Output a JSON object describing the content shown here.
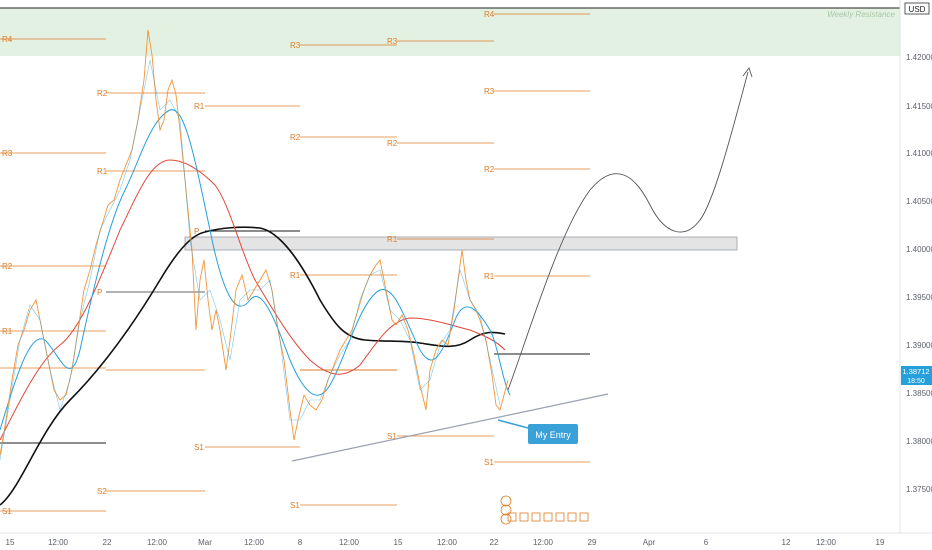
{
  "symbol_tag": "USD",
  "zone_label": "Weekly Resistance",
  "entry_label": "My Entry",
  "price_tag": {
    "value": "1.38712",
    "countdown": "18:50"
  },
  "colors": {
    "background": "#ffffff",
    "pivot": "#e07b24",
    "price_line": "#f0953a",
    "ma_fast": "#26a0da",
    "ma_mid": "#e0473a",
    "ma_slow": "#111111",
    "resistance_zone": "#e3f1e3",
    "demand_zone": "#e4e4e4",
    "trendline": "#9aa0b0",
    "entry_box": "#3aa0d8",
    "price_tag_bg": "#26a0da"
  },
  "chart_data": {
    "type": "line",
    "y_ticks": [
      "1.42000",
      "1.41500",
      "1.41000",
      "1.40500",
      "1.40000",
      "1.39500",
      "1.39000",
      "1.38500",
      "1.38000",
      "1.37500"
    ],
    "ylim": [
      1.3715,
      1.4255
    ],
    "x_ticks": [
      "15",
      "12:00",
      "22",
      "12:00",
      "Mar",
      "12:00",
      "8",
      "12:00",
      "15",
      "12:00",
      "22",
      "12:00",
      "29",
      "Apr",
      "6",
      "12",
      "12:00",
      "19"
    ],
    "resistance_zone": [
      1.42,
      1.4255
    ],
    "demand_zone": [
      1.3996,
      1.4012
    ],
    "pivot_levels": [
      {
        "label": "R4",
        "y": 1.4225
      },
      {
        "label": "R3",
        "y": 1.4221
      },
      {
        "label": "R3",
        "y": 1.4222
      },
      {
        "label": "R4",
        "y": 1.4249
      },
      {
        "label": "R2",
        "y": 1.4162
      },
      {
        "label": "R1",
        "y": 1.415
      },
      {
        "label": "R3",
        "y": 1.4164
      },
      {
        "label": "R3",
        "y": 1.4102
      },
      {
        "label": "R2",
        "y": 1.4108
      },
      {
        "label": "R2",
        "y": 1.4114
      },
      {
        "label": "R1",
        "y": 1.4082
      },
      {
        "label": "R2",
        "y": 1.4082
      },
      {
        "label": "P",
        "y": 1.4017
      },
      {
        "label": "R1",
        "y": 1.401
      },
      {
        "label": "R2",
        "y": 1.3989
      },
      {
        "label": "R1",
        "y": 1.3975
      },
      {
        "label": "R1",
        "y": 1.3975
      },
      {
        "label": "P",
        "y": 1.3961
      },
      {
        "label": "R1",
        "y": 1.3919
      },
      {
        "label": "S1",
        "y": 1.3806
      },
      {
        "label": "S1",
        "y": 1.3814
      },
      {
        "label": "S1",
        "y": 1.3778
      },
      {
        "label": "S2",
        "y": 1.3751
      },
      {
        "label": "S1",
        "y": 1.3734
      },
      {
        "label": "S1",
        "y": 1.373
      }
    ],
    "series": [
      {
        "name": "",
        "values": []
      }
    ]
  }
}
